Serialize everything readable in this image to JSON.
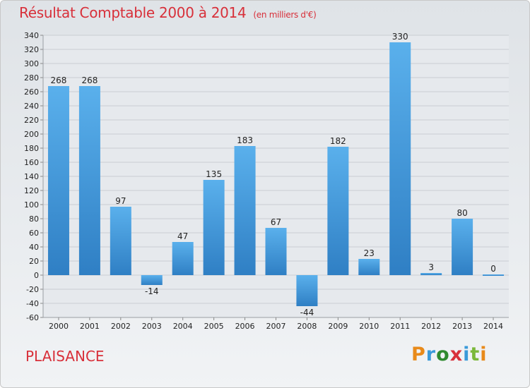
{
  "header": {
    "title": "Résultat Comptable 2000 à 2014",
    "subtitle": "(en milliers d'€)"
  },
  "footer": {
    "place": "PLAISANCE",
    "logo": "Proxiti"
  },
  "chart_data": {
    "type": "bar",
    "title": "Résultat Comptable 2000 à 2014",
    "subtitle": "(en milliers d'€)",
    "categories": [
      "2000",
      "2001",
      "2002",
      "2003",
      "2004",
      "2005",
      "2006",
      "2007",
      "2008",
      "2009",
      "2010",
      "2011",
      "2012",
      "2013",
      "2014"
    ],
    "values": [
      268,
      268,
      97,
      -14,
      47,
      135,
      183,
      67,
      -44,
      182,
      23,
      330,
      3,
      80,
      0
    ],
    "ylim": [
      -60,
      340
    ],
    "yticks": [
      -60,
      -40,
      -20,
      0,
      20,
      40,
      60,
      80,
      100,
      120,
      140,
      160,
      180,
      200,
      220,
      240,
      260,
      280,
      300,
      320,
      340
    ],
    "grid": true,
    "bar_color": "#3a8fd6"
  }
}
